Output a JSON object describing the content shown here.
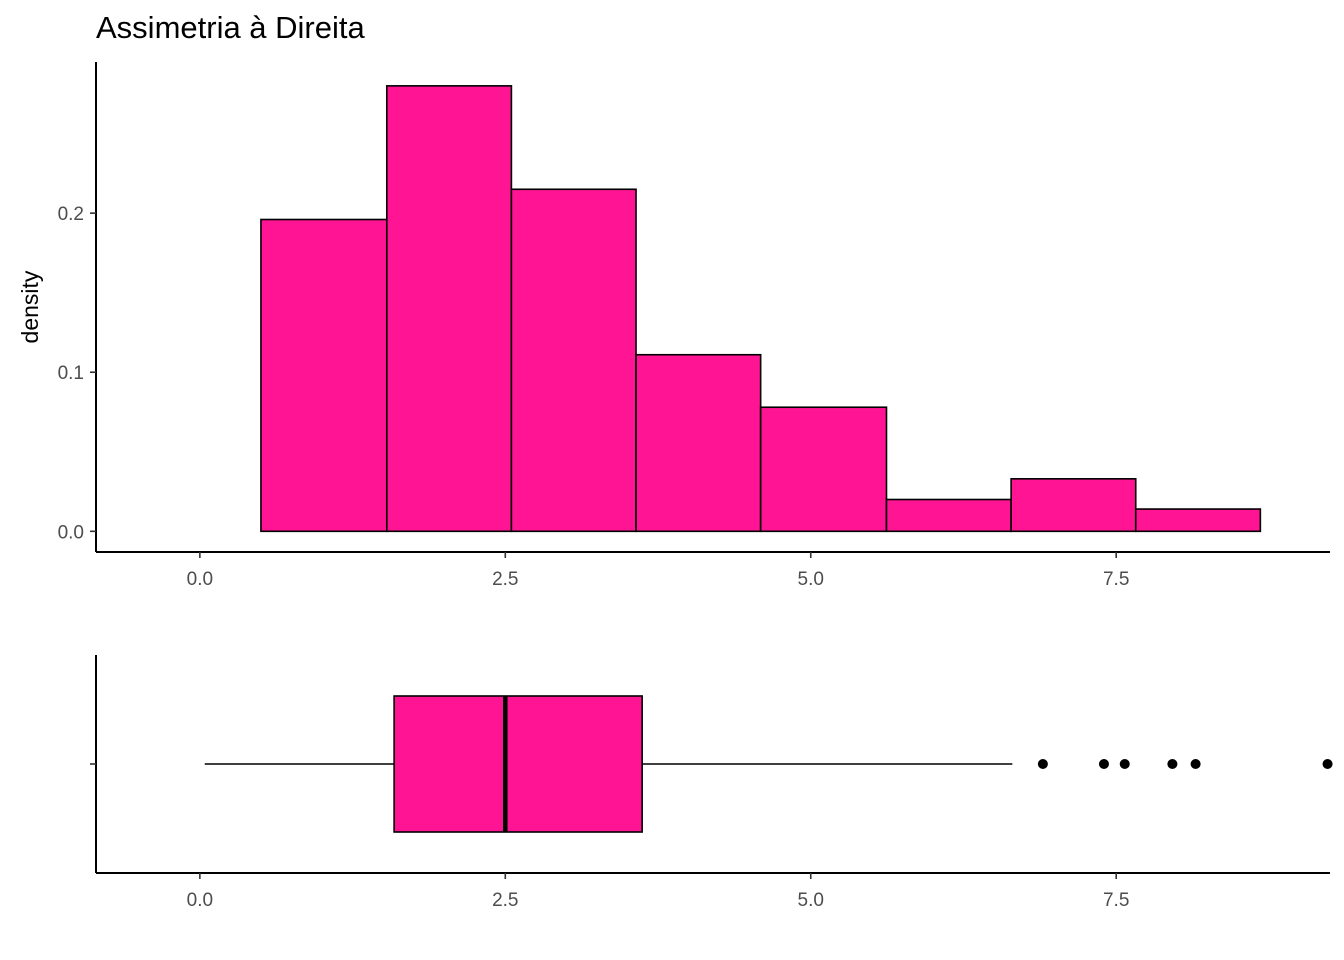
{
  "chart_data": [
    {
      "type": "histogram",
      "title": "Assimetria à Direita",
      "ylabel": "density",
      "xlabel": "",
      "xlim": [
        -0.85,
        9.25
      ],
      "ylim": [
        -0.013,
        0.295
      ],
      "x_ticks": [
        {
          "value": 0,
          "label": "0.0"
        },
        {
          "value": 2.5,
          "label": "2.5"
        },
        {
          "value": 5,
          "label": "5.0"
        },
        {
          "value": 7.5,
          "label": "7.5"
        }
      ],
      "y_ticks": [
        {
          "value": 0,
          "label": "0.0"
        },
        {
          "value": 0.1,
          "label": "0.1"
        },
        {
          "value": 0.2,
          "label": "0.2"
        }
      ],
      "bins": [
        {
          "x0": 0.5,
          "x1": 1.53,
          "density": 0.196
        },
        {
          "x0": 1.53,
          "x1": 2.55,
          "density": 0.28
        },
        {
          "x0": 2.55,
          "x1": 3.57,
          "density": 0.215
        },
        {
          "x0": 3.57,
          "x1": 4.59,
          "density": 0.111
        },
        {
          "x0": 4.59,
          "x1": 5.62,
          "density": 0.078
        },
        {
          "x0": 5.62,
          "x1": 6.64,
          "density": 0.02
        },
        {
          "x0": 6.64,
          "x1": 7.66,
          "density": 0.033
        },
        {
          "x0": 7.66,
          "x1": 8.68,
          "density": 0.014
        }
      ],
      "fill": "#ff1493",
      "stroke": "#000000",
      "grid": false
    },
    {
      "type": "boxplot",
      "xlim": [
        -0.85,
        9.25
      ],
      "x_ticks": [
        {
          "value": 0,
          "label": "0.0"
        },
        {
          "value": 2.5,
          "label": "2.5"
        },
        {
          "value": 5,
          "label": "5.0"
        },
        {
          "value": 7.5,
          "label": "7.5"
        }
      ],
      "whisker_low": 0.04,
      "q1": 1.59,
      "median": 2.5,
      "q3": 3.62,
      "whisker_high": 6.65,
      "outliers": [
        6.9,
        7.4,
        7.57,
        7.96,
        8.15,
        9.23
      ],
      "fill": "#ff1493",
      "stroke": "#000000",
      "grid": false
    }
  ]
}
